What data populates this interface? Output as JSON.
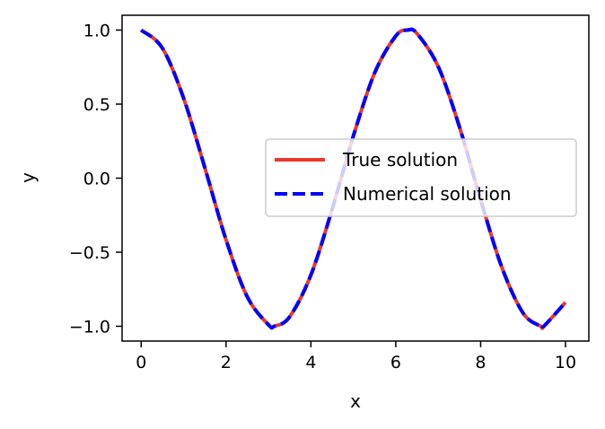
{
  "chart_data": {
    "type": "line",
    "xlabel": "x",
    "ylabel": "y",
    "xlim": [
      -0.45,
      10.55
    ],
    "ylim": [
      -1.1,
      1.1
    ],
    "xticks": [
      0,
      2,
      4,
      6,
      8,
      10
    ],
    "xtick_labels": [
      "0",
      "2",
      "4",
      "6",
      "8",
      "10"
    ],
    "yticks": [
      -1.0,
      -0.5,
      0.0,
      0.5,
      1.0
    ],
    "ytick_labels": [
      "−1.0",
      "−0.5",
      "0.0",
      "0.5",
      "1.0"
    ],
    "grid": false,
    "legend": {
      "placement": "center-right"
    },
    "series": [
      {
        "name": "True solution",
        "style": "solid",
        "color": "#e8392a",
        "x": [
          0,
          0.5,
          1,
          1.5,
          2,
          2.5,
          3,
          3.14,
          3.5,
          4,
          4.5,
          5,
          5.5,
          6,
          6.28,
          6.5,
          7,
          7.5,
          8,
          8.5,
          9,
          9.42,
          9.5,
          10
        ],
        "y": [
          1.0,
          0.878,
          0.54,
          0.071,
          -0.416,
          -0.801,
          -0.99,
          -1.0,
          -0.936,
          -0.654,
          -0.211,
          0.284,
          0.709,
          0.96,
          1.0,
          0.977,
          0.754,
          0.347,
          -0.146,
          -0.602,
          -0.911,
          -1.0,
          -0.997,
          -0.839
        ]
      },
      {
        "name": "Numerical solution",
        "style": "dashed",
        "color": "#0000ff",
        "x": [
          0,
          0.5,
          1,
          1.5,
          2,
          2.5,
          3,
          3.14,
          3.5,
          4,
          4.5,
          5,
          5.5,
          6,
          6.28,
          6.5,
          7,
          7.5,
          8,
          8.5,
          9,
          9.42,
          9.5,
          10
        ],
        "y": [
          1.0,
          0.878,
          0.54,
          0.071,
          -0.416,
          -0.801,
          -0.99,
          -1.0,
          -0.936,
          -0.654,
          -0.211,
          0.284,
          0.709,
          0.96,
          1.0,
          0.977,
          0.754,
          0.347,
          -0.146,
          -0.602,
          -0.911,
          -1.0,
          -0.997,
          -0.839
        ]
      }
    ]
  }
}
